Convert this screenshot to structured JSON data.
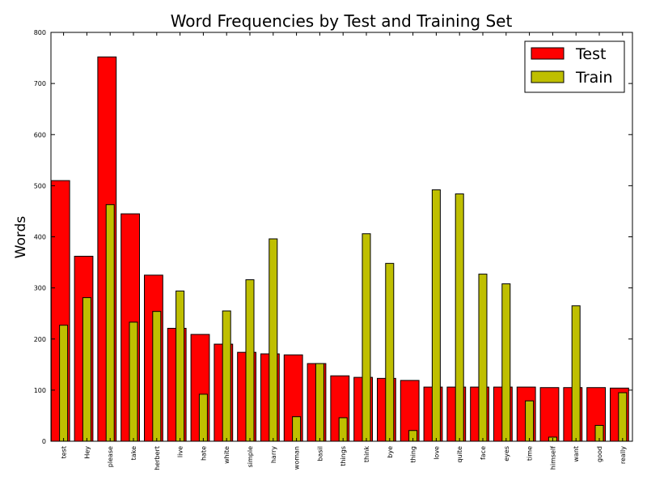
{
  "chart_data": {
    "type": "bar",
    "title": "Word Frequencies by Test and Training Set",
    "xlabel": "",
    "ylabel": "Words",
    "ylim": [
      0,
      800
    ],
    "yticks": [
      0,
      100,
      200,
      300,
      400,
      500,
      600,
      700,
      800
    ],
    "grid": false,
    "legend_position": "top-right",
    "categories": [
      "test",
      "Hey",
      "please",
      "take",
      "herbert",
      "live",
      "hate",
      "white",
      "simple",
      "harry",
      "woman",
      "basil",
      "things",
      "think",
      "bye",
      "thing",
      "love",
      "quite",
      "face",
      "eyes",
      "time",
      "himself",
      "want",
      "good",
      "really"
    ],
    "series": [
      {
        "name": "Test",
        "color": "#ff0000",
        "values": [
          510,
          362,
          752,
          445,
          325,
          221,
          209,
          190,
          174,
          171,
          169,
          152,
          128,
          125,
          123,
          119,
          106,
          106,
          106,
          106,
          106,
          105,
          105,
          105,
          104
        ]
      },
      {
        "name": "Train",
        "color": "#bfbf00",
        "values": [
          227,
          281,
          463,
          233,
          254,
          294,
          92,
          255,
          316,
          396,
          48,
          152,
          46,
          406,
          348,
          21,
          492,
          484,
          327,
          308,
          79,
          8,
          265,
          31,
          95
        ]
      }
    ]
  }
}
